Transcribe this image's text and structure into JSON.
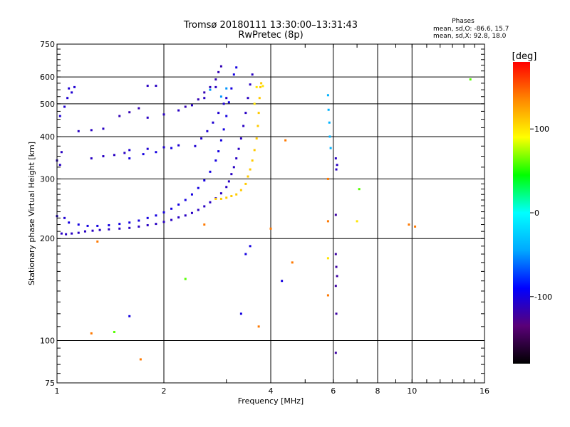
{
  "chart_data": {
    "type": "scatter",
    "title": "Tromsø 20180111 13:30:00–13:31:43",
    "subtitle": "RwPretec (8p)",
    "stats": {
      "heading": "Phases",
      "line1": "mean, sd,O: -86.6, 15.7",
      "line2": "mean, sd,X:  92.8, 18.0"
    },
    "xlabel": "Frequency [MHz]",
    "ylabel": "Stationary phase Virtual Height [km]",
    "x_scale": "log",
    "y_scale": "log",
    "xlim": [
      1,
      16
    ],
    "ylim": [
      75,
      750
    ],
    "x_ticks": [
      1,
      2,
      4,
      6,
      8,
      10,
      16
    ],
    "y_ticks": [
      75,
      100,
      200,
      300,
      400,
      500,
      600,
      750
    ],
    "grid": true,
    "colorbar": {
      "label": "[deg]",
      "range": [
        -180,
        180
      ],
      "ticks": [
        100,
        0,
        -100
      ],
      "colors": [
        "#000000",
        "#5a0078",
        "#0000ff",
        "#00a8ff",
        "#00ffff",
        "#00ff00",
        "#ffff00",
        "#ff8800",
        "#ff0000"
      ]
    },
    "series": [
      {
        "points": [
          [
            1.03,
            207
          ],
          [
            1.06,
            206
          ],
          [
            1.1,
            207
          ],
          [
            1.15,
            208
          ],
          [
            1.2,
            210
          ],
          [
            1.26,
            211
          ],
          [
            1.32,
            212
          ],
          [
            1.4,
            213
          ],
          [
            1.5,
            214
          ],
          [
            1.6,
            215
          ],
          [
            1.7,
            217
          ],
          [
            1.8,
            219
          ],
          [
            1.9,
            221
          ],
          [
            2.0,
            224
          ],
          [
            2.1,
            227
          ],
          [
            2.2,
            231
          ],
          [
            2.3,
            234
          ],
          [
            2.4,
            238
          ],
          [
            2.5,
            243
          ],
          [
            2.6,
            249
          ],
          [
            2.7,
            256
          ],
          [
            2.8,
            263
          ],
          [
            2.9,
            272
          ],
          [
            3.0,
            284
          ],
          [
            3.05,
            295
          ],
          [
            3.1,
            310
          ],
          [
            3.15,
            325
          ],
          [
            3.2,
            345
          ],
          [
            3.25,
            368
          ],
          [
            3.3,
            395
          ],
          [
            3.35,
            430
          ],
          [
            3.4,
            470
          ],
          [
            3.45,
            520
          ],
          [
            3.5,
            570
          ],
          [
            3.55,
            610
          ]
        ],
        "phase": -110
      },
      {
        "points": [
          [
            1.08,
            223
          ],
          [
            1.15,
            220
          ],
          [
            1.22,
            218
          ],
          [
            1.3,
            218
          ],
          [
            1.4,
            219
          ],
          [
            1.5,
            221
          ],
          [
            1.6,
            223
          ],
          [
            1.7,
            226
          ],
          [
            1.8,
            230
          ],
          [
            1.9,
            234
          ],
          [
            2.0,
            239
          ],
          [
            2.1,
            245
          ],
          [
            2.2,
            252
          ],
          [
            2.3,
            260
          ],
          [
            2.4,
            270
          ],
          [
            2.5,
            282
          ],
          [
            2.6,
            297
          ],
          [
            2.7,
            315
          ],
          [
            2.8,
            340
          ],
          [
            2.85,
            362
          ],
          [
            2.9,
            390
          ],
          [
            2.95,
            420
          ],
          [
            3.0,
            460
          ],
          [
            3.05,
            505
          ],
          [
            3.1,
            555
          ],
          [
            3.15,
            610
          ],
          [
            3.2,
            640
          ]
        ],
        "phase": -100
      },
      {
        "points": [
          [
            2.3,
            490
          ],
          [
            2.5,
            515
          ],
          [
            2.6,
            540
          ],
          [
            2.7,
            560
          ],
          [
            2.8,
            590
          ],
          [
            2.85,
            620
          ],
          [
            2.9,
            645
          ]
        ],
        "phase": -115
      },
      {
        "points": [
          [
            1.8,
            455
          ],
          [
            2.0,
            465
          ],
          [
            2.2,
            478
          ],
          [
            2.4,
            495
          ],
          [
            2.6,
            520
          ],
          [
            2.8,
            560
          ]
        ],
        "phase": -110
      },
      {
        "points": [
          [
            2.45,
            375
          ],
          [
            2.55,
            395
          ],
          [
            2.65,
            415
          ],
          [
            2.75,
            440
          ],
          [
            2.85,
            470
          ],
          [
            2.95,
            500
          ],
          [
            3.0,
            520
          ]
        ],
        "phase": -105
      },
      {
        "points": [
          [
            1.6,
            365
          ],
          [
            1.8,
            368
          ],
          [
            2.0,
            372
          ],
          [
            2.2,
            377
          ]
        ],
        "phase": -105
      },
      {
        "points": [
          [
            1.6,
            345
          ],
          [
            1.75,
            355
          ],
          [
            1.9,
            360
          ],
          [
            2.1,
            370
          ]
        ],
        "phase": -100
      },
      {
        "points": [
          [
            1.25,
            345
          ],
          [
            1.35,
            350
          ],
          [
            1.45,
            353
          ],
          [
            1.55,
            358
          ]
        ],
        "phase": -110
      },
      {
        "points": [
          [
            1.15,
            415
          ],
          [
            1.25,
            418
          ],
          [
            1.35,
            422
          ]
        ],
        "phase": -110
      },
      {
        "points": [
          [
            1.5,
            460
          ],
          [
            1.6,
            472
          ],
          [
            1.7,
            485
          ]
        ],
        "phase": -115
      },
      {
        "points": [
          [
            2.8,
            262
          ],
          [
            2.9,
            262
          ],
          [
            3.0,
            264
          ],
          [
            3.1,
            267
          ],
          [
            3.2,
            270
          ],
          [
            3.3,
            278
          ],
          [
            3.4,
            290
          ],
          [
            3.45,
            305
          ],
          [
            3.5,
            320
          ],
          [
            3.55,
            340
          ],
          [
            3.6,
            365
          ],
          [
            3.65,
            395
          ],
          [
            3.68,
            430
          ],
          [
            3.7,
            470
          ],
          [
            3.72,
            520
          ],
          [
            3.74,
            560
          ],
          [
            3.76,
            575
          ]
        ],
        "phase": 110
      },
      {
        "points": [
          [
            3.6,
            500
          ],
          [
            3.65,
            560
          ]
        ],
        "phase": 100
      },
      {
        "points": [
          [
            5.8,
            530
          ],
          [
            5.82,
            480
          ],
          [
            5.85,
            440
          ],
          [
            5.87,
            400
          ],
          [
            5.9,
            370
          ]
        ],
        "phase": -40
      },
      {
        "points": [
          [
            6.1,
            345
          ],
          [
            6.15,
            330
          ],
          [
            6.12,
            320
          ]
        ],
        "phase": -110
      },
      {
        "points": [
          [
            6.1,
            180
          ],
          [
            6.12,
            165
          ],
          [
            6.15,
            155
          ],
          [
            6.1,
            145
          ],
          [
            6.12,
            120
          ],
          [
            6.1,
            92
          ],
          [
            6.1,
            235
          ]
        ],
        "phase": -120
      },
      {
        "points": [
          [
            1.02,
            460
          ],
          [
            1.05,
            490
          ],
          [
            1.07,
            520
          ],
          [
            1.08,
            555
          ],
          [
            1.1,
            540
          ],
          [
            1.12,
            560
          ]
        ],
        "phase": -105
      },
      {
        "points": [
          [
            1.0,
            340
          ],
          [
            1.02,
            330
          ],
          [
            1.03,
            360
          ]
        ],
        "phase": -110
      },
      {
        "points": [
          [
            1.05,
            230
          ],
          [
            1.0,
            233
          ]
        ],
        "phase": -105
      },
      {
        "points": [
          [
            3.4,
            180
          ],
          [
            3.5,
            190
          ],
          [
            3.3,
            120
          ],
          [
            4.3,
            150
          ],
          [
            1.6,
            118
          ]
        ],
        "phase": -100
      },
      {
        "points": [
          [
            1.8,
            565
          ],
          [
            1.9,
            565
          ]
        ],
        "phase": -110
      },
      {
        "points": [
          [
            2.7,
            550
          ],
          [
            3.0,
            555
          ],
          [
            2.9,
            525
          ]
        ],
        "phase": -50
      },
      {
        "points": [
          [
            1.25,
            105
          ],
          [
            1.72,
            88
          ],
          [
            4.6,
            170
          ],
          [
            4.0,
            214
          ],
          [
            9.8,
            220
          ],
          [
            10.2,
            217
          ],
          [
            5.8,
            136
          ],
          [
            5.8,
            225
          ],
          [
            5.8,
            300
          ],
          [
            3.7,
            110
          ],
          [
            4.4,
            390
          ],
          [
            2.6,
            220
          ],
          [
            1.3,
            196
          ]
        ],
        "phase": 140
      },
      {
        "points": [
          [
            2.3,
            152
          ],
          [
            1.45,
            106
          ],
          [
            7.1,
            280
          ],
          [
            14.6,
            590
          ]
        ],
        "phase": 60
      },
      {
        "points": [
          [
            5.8,
            175
          ],
          [
            7.0,
            225
          ],
          [
            3.8,
            564
          ]
        ],
        "phase": 100
      }
    ]
  }
}
